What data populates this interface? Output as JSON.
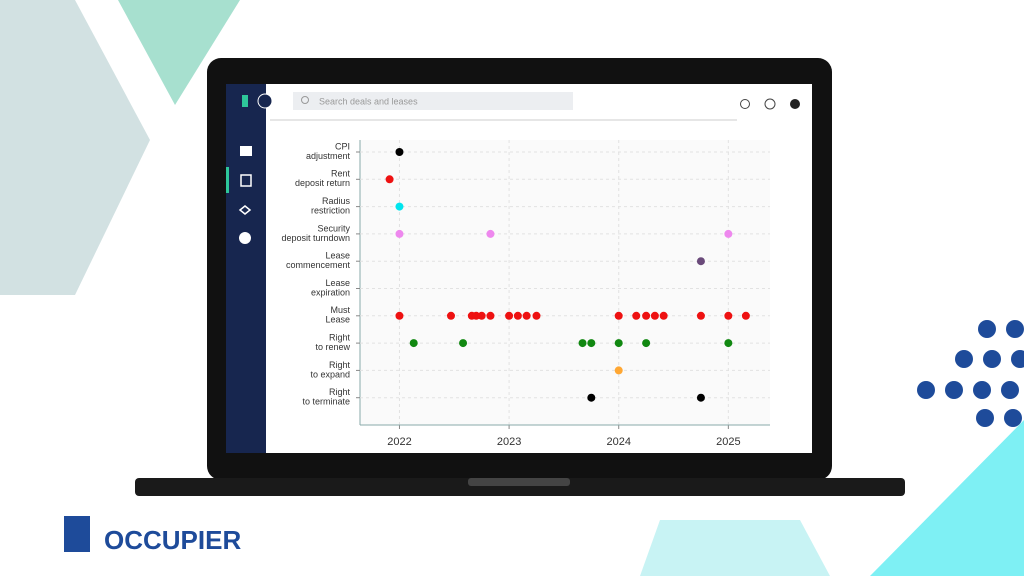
{
  "app": {
    "search_placeholder": "Search deals and leases"
  },
  "brand": {
    "name": "OCCUPIER"
  },
  "chart_data": {
    "type": "strip",
    "rows": [
      {
        "label": [
          "CPI",
          "adjustment"
        ],
        "color": "#000000",
        "x": [
          2022.0
        ]
      },
      {
        "label": [
          "Rent",
          "deposit return"
        ],
        "color": "#ee1111",
        "x": [
          2021.91
        ]
      },
      {
        "label": [
          "Radius",
          "restriction"
        ],
        "color": "#00e5ee",
        "x": [
          2022.0
        ]
      },
      {
        "label": [
          "Security",
          "deposit turndown"
        ],
        "color": "#ee88ee",
        "x": [
          2022.0,
          2022.83,
          2025.0
        ]
      },
      {
        "label": [
          "Lease",
          "commencement"
        ],
        "color": "#6a4a7a",
        "x": [
          2024.75
        ]
      },
      {
        "label": [
          "Lease",
          "expiration"
        ],
        "color": "#ee1111",
        "x": []
      },
      {
        "label": [
          "Must",
          "Lease"
        ],
        "color": "#ee1111",
        "x": [
          2022.0,
          2022.47,
          2022.66,
          2022.7,
          2022.75,
          2022.83,
          2023.0,
          2023.08,
          2023.16,
          2023.25,
          2024.0,
          2024.16,
          2024.25,
          2024.33,
          2024.41,
          2024.75,
          2025.0,
          2025.16
        ]
      },
      {
        "label": [
          "Right",
          "to renew"
        ],
        "color": "#118811",
        "x": [
          2022.13,
          2022.58,
          2023.67,
          2023.75,
          2024.0,
          2024.25,
          2025.0
        ]
      },
      {
        "label": [
          "Right",
          "to expand"
        ],
        "color": "#ffa733",
        "x": [
          2024.0
        ]
      },
      {
        "label": [
          "Right",
          "to terminate"
        ],
        "color": "#000000",
        "x": [
          2023.75,
          2024.75
        ]
      }
    ],
    "xlim": [
      2021.64,
      2025.38
    ],
    "xticks": [
      2022,
      2023,
      2024,
      2025
    ],
    "grid": true
  }
}
